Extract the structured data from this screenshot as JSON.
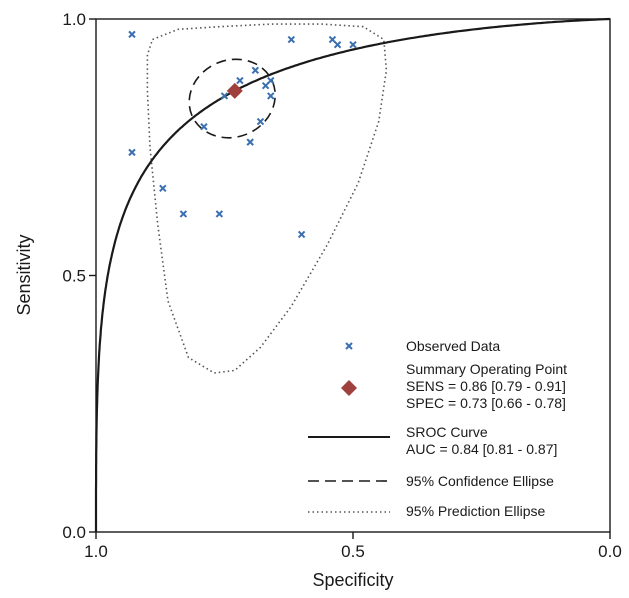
{
  "chart_data": {
    "type": "scatter",
    "xlabel": "Specificity",
    "ylabel": "Sensitivity",
    "xlim": [
      1.0,
      0.0
    ],
    "ylim": [
      0.0,
      1.0
    ],
    "x_reversed": true,
    "grid": false,
    "legend_placement": "bottom-right",
    "x_ticks": [
      {
        "value": 1.0,
        "label": "1.0"
      },
      {
        "value": 0.5,
        "label": "0.5"
      },
      {
        "value": 0.0,
        "label": "0.0"
      }
    ],
    "y_ticks": [
      {
        "value": 0.0,
        "label": "0.0"
      },
      {
        "value": 0.5,
        "label": "0.5"
      },
      {
        "value": 1.0,
        "label": "1.0"
      }
    ],
    "observed_data": {
      "marker": "x",
      "color": "#3a6fb0",
      "points": [
        {
          "specificity": 0.93,
          "sensitivity": 0.97
        },
        {
          "specificity": 0.62,
          "sensitivity": 0.96
        },
        {
          "specificity": 0.54,
          "sensitivity": 0.96
        },
        {
          "specificity": 0.53,
          "sensitivity": 0.95
        },
        {
          "specificity": 0.5,
          "sensitivity": 0.95
        },
        {
          "specificity": 0.69,
          "sensitivity": 0.9
        },
        {
          "specificity": 0.72,
          "sensitivity": 0.88
        },
        {
          "specificity": 0.66,
          "sensitivity": 0.88
        },
        {
          "specificity": 0.67,
          "sensitivity": 0.87
        },
        {
          "specificity": 0.75,
          "sensitivity": 0.85
        },
        {
          "specificity": 0.66,
          "sensitivity": 0.85
        },
        {
          "specificity": 0.68,
          "sensitivity": 0.8
        },
        {
          "specificity": 0.79,
          "sensitivity": 0.79
        },
        {
          "specificity": 0.7,
          "sensitivity": 0.76
        },
        {
          "specificity": 0.93,
          "sensitivity": 0.74
        },
        {
          "specificity": 0.87,
          "sensitivity": 0.67
        },
        {
          "specificity": 0.83,
          "sensitivity": 0.62
        },
        {
          "specificity": 0.76,
          "sensitivity": 0.62
        },
        {
          "specificity": 0.6,
          "sensitivity": 0.58
        }
      ]
    },
    "summary_point": {
      "specificity": 0.73,
      "sensitivity": 0.86,
      "color": "#a0403e",
      "sens_text": "SENS = 0.86 [0.79 - 0.91]",
      "spec_text": "SPEC = 0.73 [0.66 - 0.78]"
    },
    "sroc_curve": {
      "color": "#1a1a1a",
      "auc_text": "AUC = 0.84 [0.81 - 0.87]"
    },
    "confidence_ellipse": {
      "center_specificity": 0.735,
      "center_sensitivity": 0.845,
      "radius_specificity": 0.085,
      "radius_sensitivity": 0.075,
      "style": "dashed"
    },
    "prediction_region": {
      "style": "dotted",
      "outline": [
        [
          0.89,
          0.96
        ],
        [
          0.84,
          0.98
        ],
        [
          0.76,
          0.985
        ],
        [
          0.66,
          0.99
        ],
        [
          0.56,
          0.99
        ],
        [
          0.48,
          0.985
        ],
        [
          0.44,
          0.96
        ],
        [
          0.435,
          0.9
        ],
        [
          0.45,
          0.8
        ],
        [
          0.49,
          0.68
        ],
        [
          0.55,
          0.56
        ],
        [
          0.62,
          0.44
        ],
        [
          0.68,
          0.36
        ],
        [
          0.73,
          0.315
        ],
        [
          0.77,
          0.31
        ],
        [
          0.82,
          0.34
        ],
        [
          0.86,
          0.45
        ],
        [
          0.88,
          0.6
        ],
        [
          0.895,
          0.75
        ],
        [
          0.9,
          0.86
        ],
        [
          0.9,
          0.93
        ],
        [
          0.89,
          0.96
        ]
      ]
    },
    "legend": [
      {
        "key": "observed",
        "label": "Observed Data"
      },
      {
        "key": "summary",
        "label": "Summary Operating Point"
      },
      {
        "key": "sroc",
        "label": "SROC Curve"
      },
      {
        "key": "ci",
        "label": "95% Confidence Ellipse"
      },
      {
        "key": "pi",
        "label": "95% Prediction Ellipse"
      }
    ]
  }
}
